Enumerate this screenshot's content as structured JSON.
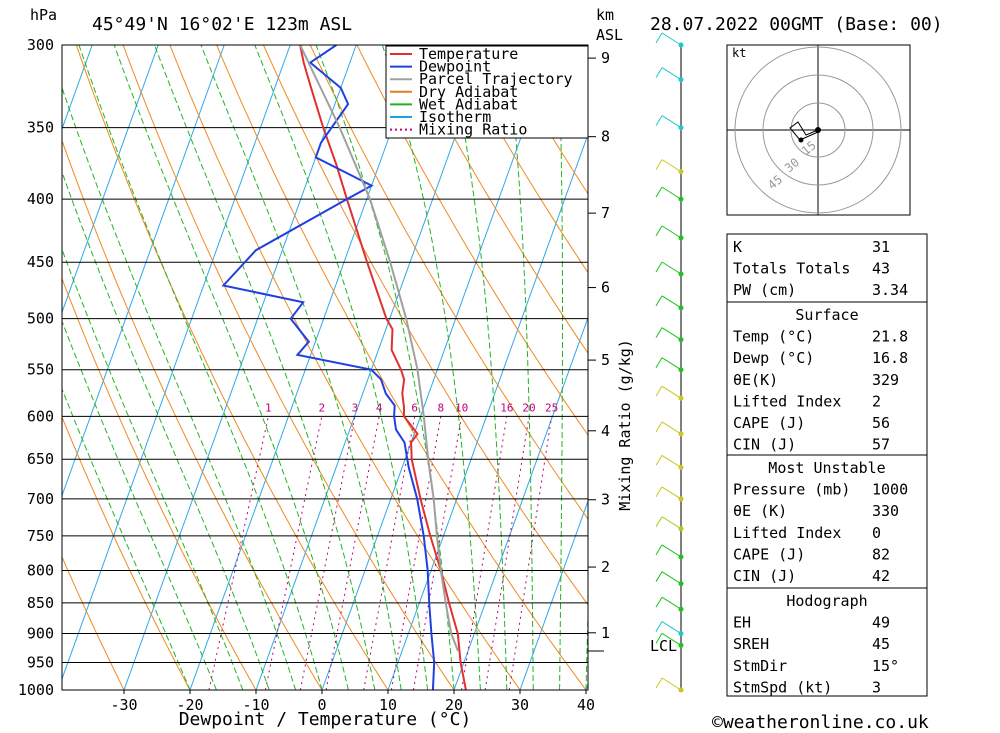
{
  "header": {
    "hpa_label": "hPa",
    "location": "45°49'N  16°02'E  123m  ASL",
    "km_label": "km",
    "asl_label": "ASL",
    "datetime": "28.07.2022  00GMT  (Base: 00)"
  },
  "axes": {
    "xlabel": "Dewpoint / Temperature (°C)",
    "ylabel_right": "Mixing Ratio (g/kg)",
    "pressure_ticks": [
      300,
      350,
      400,
      450,
      500,
      550,
      600,
      650,
      700,
      750,
      800,
      850,
      900,
      950,
      1000
    ],
    "temp_ticks": [
      -30,
      -20,
      -10,
      0,
      10,
      20,
      30,
      40
    ],
    "km_ticks": [
      1,
      2,
      3,
      4,
      5,
      6,
      7,
      8,
      9
    ],
    "lcl_label": "LCL",
    "mixing_ratios": [
      1,
      2,
      3,
      4,
      6,
      8,
      10,
      16,
      20,
      25
    ]
  },
  "legend": {
    "items": [
      {
        "label": "Temperature",
        "color": "#e03030",
        "style": "solid"
      },
      {
        "label": "Dewpoint",
        "color": "#2040e0",
        "style": "solid"
      },
      {
        "label": "Parcel Trajectory",
        "color": "#a0a0a0",
        "style": "solid"
      },
      {
        "label": "Dry Adiabat",
        "color": "#e08020",
        "style": "solid"
      },
      {
        "label": "Wet Adiabat",
        "color": "#20b020",
        "style": "solid"
      },
      {
        "label": "Isotherm",
        "color": "#20a0e0",
        "style": "solid"
      },
      {
        "label": "Mixing Ratio",
        "color": "#c0007a",
        "style": "dotted"
      }
    ]
  },
  "chart_data": {
    "type": "line",
    "title": "45°49'N 16°02'E 123m ASL — 28.07.2022 00GMT (Base: 00)",
    "xlabel": "Dewpoint / Temperature (°C)",
    "ylabel": "hPa",
    "xlim": [
      -40,
      40
    ],
    "ylim": [
      1000,
      300
    ],
    "series": [
      {
        "name": "Temperature",
        "points": [
          [
            1000,
            21.8
          ],
          [
            950,
            19.5
          ],
          [
            900,
            17.5
          ],
          [
            850,
            14.5
          ],
          [
            800,
            11.5
          ],
          [
            750,
            8.0
          ],
          [
            700,
            4.5
          ],
          [
            650,
            1.0
          ],
          [
            630,
            0.0
          ],
          [
            620,
            0.5
          ],
          [
            600,
            -2.5
          ],
          [
            590,
            -3.0
          ],
          [
            575,
            -4.0
          ],
          [
            560,
            -4.5
          ],
          [
            550,
            -5.5
          ],
          [
            530,
            -8.0
          ],
          [
            510,
            -9.0
          ],
          [
            500,
            -10.5
          ],
          [
            450,
            -16.5
          ],
          [
            400,
            -23.0
          ],
          [
            375,
            -26.5
          ],
          [
            350,
            -30.5
          ],
          [
            325,
            -34.5
          ],
          [
            310,
            -37.0
          ],
          [
            300,
            -38.5
          ]
        ]
      },
      {
        "name": "Dewpoint",
        "points": [
          [
            1000,
            16.8
          ],
          [
            950,
            15.5
          ],
          [
            900,
            13.5
          ],
          [
            850,
            11.5
          ],
          [
            800,
            9.5
          ],
          [
            750,
            7.0
          ],
          [
            700,
            4.0
          ],
          [
            660,
            1.0
          ],
          [
            630,
            -1.0
          ],
          [
            615,
            -3.0
          ],
          [
            600,
            -4.0
          ],
          [
            588,
            -4.5
          ],
          [
            575,
            -6.5
          ],
          [
            560,
            -8.0
          ],
          [
            550,
            -10.0
          ],
          [
            535,
            -22.0
          ],
          [
            522,
            -21.0
          ],
          [
            500,
            -25.0
          ],
          [
            485,
            -24.0
          ],
          [
            470,
            -37.0
          ],
          [
            440,
            -34.0
          ],
          [
            400,
            -23.0
          ],
          [
            390,
            -20.0
          ],
          [
            370,
            -30.0
          ],
          [
            360,
            -30.0
          ],
          [
            335,
            -28.0
          ],
          [
            325,
            -30.0
          ],
          [
            310,
            -36.0
          ],
          [
            300,
            -33.0
          ]
        ]
      },
      {
        "name": "Parcel Trajectory",
        "points": [
          [
            930,
            18.5
          ],
          [
            900,
            16.5
          ],
          [
            850,
            14.0
          ],
          [
            800,
            11.5
          ],
          [
            750,
            9.0
          ],
          [
            700,
            6.5
          ],
          [
            650,
            3.5
          ],
          [
            600,
            0.5
          ],
          [
            550,
            -3.0
          ],
          [
            500,
            -7.5
          ],
          [
            450,
            -13.0
          ],
          [
            400,
            -19.5
          ],
          [
            350,
            -28.0
          ],
          [
            300,
            -38.5
          ]
        ]
      }
    ]
  },
  "hodograph": {
    "unit_label": "kt",
    "ring_labels": [
      "15",
      "30",
      "45"
    ]
  },
  "table": {
    "indices": [
      {
        "label": "K",
        "value": "31"
      },
      {
        "label": "Totals Totals",
        "value": "43"
      },
      {
        "label": "PW (cm)",
        "value": "3.34"
      }
    ],
    "surface_title": "Surface",
    "surface": [
      {
        "label": "Temp (°C)",
        "value": "21.8"
      },
      {
        "label": "Dewp (°C)",
        "value": "16.8"
      },
      {
        "label": "θE(K)",
        "value": "329"
      },
      {
        "label": "Lifted Index",
        "value": "2"
      },
      {
        "label": "CAPE (J)",
        "value": "56"
      },
      {
        "label": "CIN (J)",
        "value": "57"
      }
    ],
    "mu_title": "Most Unstable",
    "most_unstable": [
      {
        "label": "Pressure (mb)",
        "value": "1000"
      },
      {
        "label": "θE (K)",
        "value": "330"
      },
      {
        "label": "Lifted Index",
        "value": "0"
      },
      {
        "label": "CAPE (J)",
        "value": "82"
      },
      {
        "label": "CIN (J)",
        "value": "42"
      }
    ],
    "hodo_title": "Hodograph",
    "hodo": [
      {
        "label": "EH",
        "value": "49"
      },
      {
        "label": "SREH",
        "value": "45"
      },
      {
        "label": "StmDir",
        "value": "15°"
      },
      {
        "label": "StmSpd (kt)",
        "value": "3"
      }
    ]
  },
  "footer": {
    "copyright": "©weatheronline.co.uk"
  }
}
